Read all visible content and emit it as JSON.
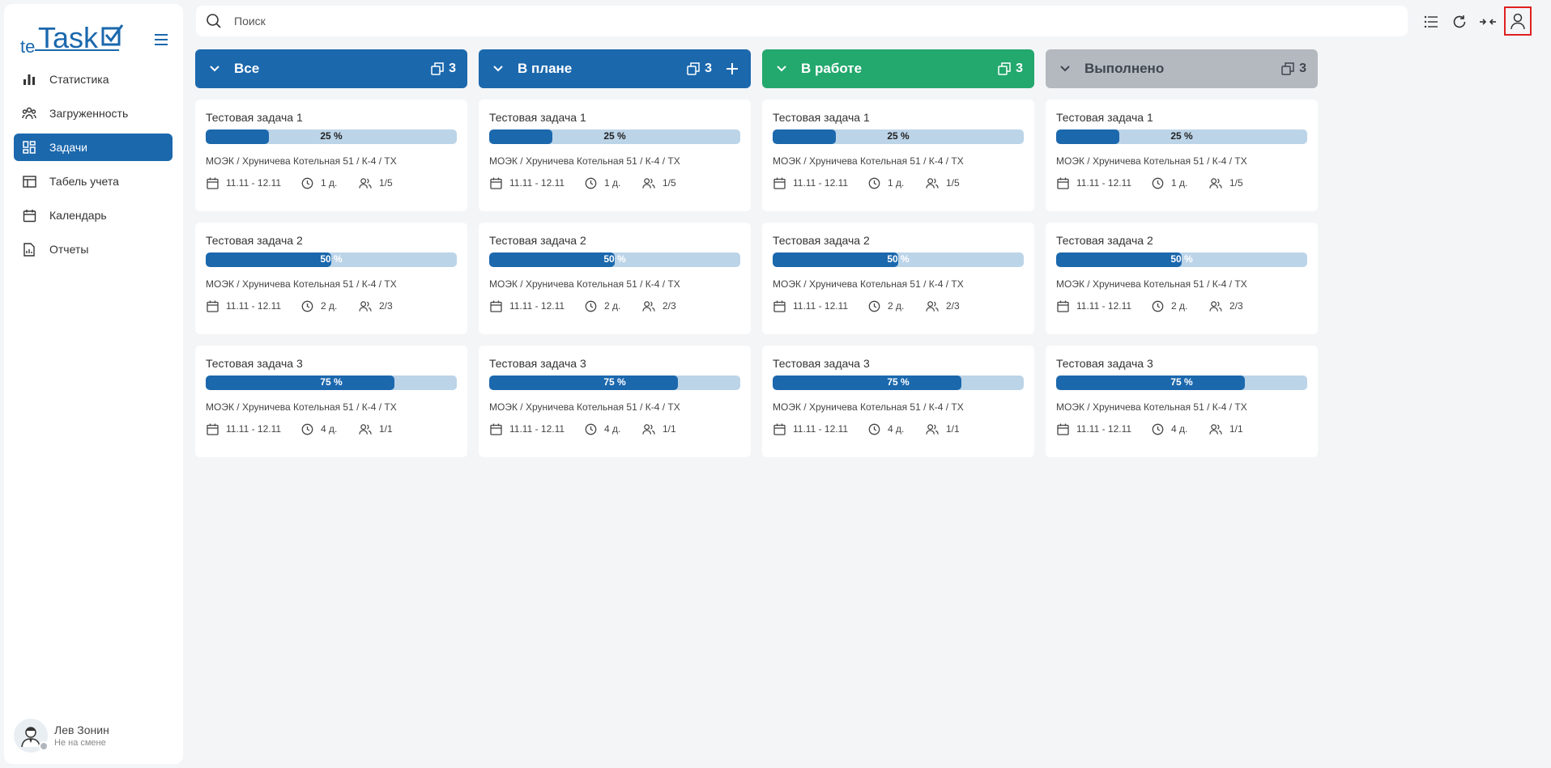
{
  "app": {
    "logo_prefix": "te",
    "logo_text": "Task",
    "brand_color": "#1b68ad"
  },
  "sidebar": {
    "items": [
      {
        "label": "Статистика",
        "icon": "bar-chart-icon"
      },
      {
        "label": "Загруженность",
        "icon": "team-load-icon"
      },
      {
        "label": "Задачи",
        "icon": "board-grid-icon",
        "active": true
      },
      {
        "label": "Табель учета",
        "icon": "table-icon"
      },
      {
        "label": "Календарь",
        "icon": "calendar-icon"
      },
      {
        "label": "Отчеты",
        "icon": "report-icon"
      }
    ]
  },
  "user": {
    "name": "Лев Зонин",
    "status": "Не на смене"
  },
  "search": {
    "placeholder": "Поиск",
    "value": ""
  },
  "columns": [
    {
      "title": "Все",
      "count": "3",
      "color": "blue",
      "cards": [
        {
          "title": "Тестовая задача 1",
          "progress": 25,
          "progress_label": "25 %",
          "path": "МОЭК  /  Хруничева Котельная 51  /  К-4  /  ТХ",
          "dates": "11.11 - 12.11",
          "duration": "1 д.",
          "people": "1/5"
        },
        {
          "title": "Тестовая задача 2",
          "progress": 50,
          "progress_label": "50 %",
          "path": "МОЭК  /  Хруничева Котельная 51  /  К-4  /  ТХ",
          "dates": "11.11 - 12.11",
          "duration": "2 д.",
          "people": "2/3"
        },
        {
          "title": "Тестовая задача 3",
          "progress": 75,
          "progress_label": "75 %",
          "path": "МОЭК  /  Хруничева Котельная 51  /  К-4  /  ТХ",
          "dates": "11.11 - 12.11",
          "duration": "4 д.",
          "people": "1/1"
        }
      ]
    },
    {
      "title": "В плане",
      "count": "3",
      "color": "blue",
      "has_add": true,
      "cards": [
        {
          "title": "Тестовая задача 1",
          "progress": 25,
          "progress_label": "25 %",
          "path": "МОЭК  /  Хруничева Котельная 51  /  К-4  /  ТХ",
          "dates": "11.11 - 12.11",
          "duration": "1 д.",
          "people": "1/5"
        },
        {
          "title": "Тестовая задача 2",
          "progress": 50,
          "progress_label": "50 %",
          "path": "МОЭК  /  Хруничева Котельная 51  /  К-4  /  ТХ",
          "dates": "11.11 - 12.11",
          "duration": "2 д.",
          "people": "2/3"
        },
        {
          "title": "Тестовая задача 3",
          "progress": 75,
          "progress_label": "75 %",
          "path": "МОЭК  /  Хруничева Котельная 51  /  К-4  /  ТХ",
          "dates": "11.11 - 12.11",
          "duration": "4 д.",
          "people": "1/1"
        }
      ]
    },
    {
      "title": "В работе",
      "count": "3",
      "color": "green",
      "cards": [
        {
          "title": "Тестовая задача 1",
          "progress": 25,
          "progress_label": "25 %",
          "path": "МОЭК  /  Хруничева Котельная 51  /  К-4  /  ТХ",
          "dates": "11.11 - 12.11",
          "duration": "1 д.",
          "people": "1/5"
        },
        {
          "title": "Тестовая задача 2",
          "progress": 50,
          "progress_label": "50 %",
          "path": "МОЭК  /  Хруничева Котельная 51  /  К-4  /  ТХ",
          "dates": "11.11 - 12.11",
          "duration": "2 д.",
          "people": "2/3"
        },
        {
          "title": "Тестовая задача 3",
          "progress": 75,
          "progress_label": "75 %",
          "path": "МОЭК  /  Хруничева Котельная 51  /  К-4  /  ТХ",
          "dates": "11.11 - 12.11",
          "duration": "4 д.",
          "people": "1/1"
        }
      ]
    },
    {
      "title": "Выполнено",
      "count": "3",
      "color": "gray",
      "cards": [
        {
          "title": "Тестовая задача 1",
          "progress": 25,
          "progress_label": "25 %",
          "path": "МОЭК  /  Хруничева Котельная 51  /  К-4  /  ТХ",
          "dates": "11.11 - 12.11",
          "duration": "1 д.",
          "people": "1/5"
        },
        {
          "title": "Тестовая задача 2",
          "progress": 50,
          "progress_label": "50 %",
          "path": "МОЭК  /  Хруничева Котельная 51  /  К-4  /  ТХ",
          "dates": "11.11 - 12.11",
          "duration": "2 д.",
          "people": "2/3"
        },
        {
          "title": "Тестовая задача 3",
          "progress": 75,
          "progress_label": "75 %",
          "path": "МОЭК  /  Хруничева Котельная 51  /  К-4  /  ТХ",
          "dates": "11.11 - 12.11",
          "duration": "4 д.",
          "people": "1/1"
        }
      ]
    }
  ]
}
